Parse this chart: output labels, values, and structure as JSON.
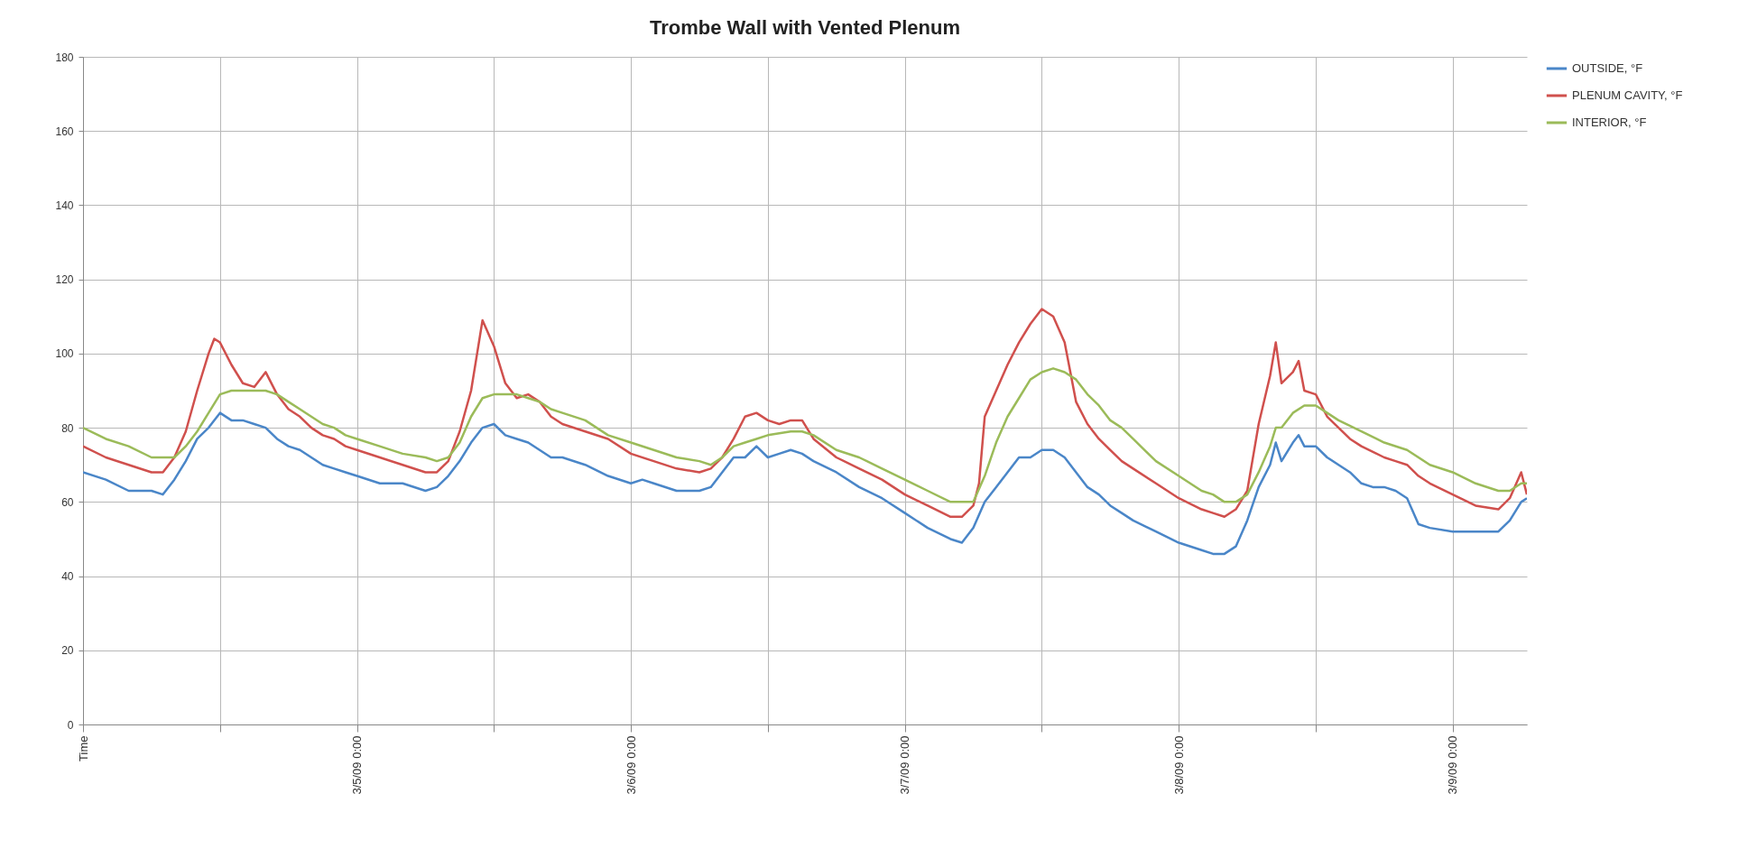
{
  "chart_data": {
    "type": "line",
    "title": "Trombe Wall with Vented Plenum",
    "xlim": [
      "--03-04T00:00",
      "--03-09T06:30"
    ],
    "xticks": [
      {
        "value": "--03-04T00:00",
        "label": "Time"
      },
      {
        "value": "--03-04T12:00",
        "label": null
      },
      {
        "value": "--03-05T00:00",
        "label": "3/5/09 0:00"
      },
      {
        "value": "--03-05T12:00",
        "label": null
      },
      {
        "value": "--03-06T00:00",
        "label": "3/6/09 0:00"
      },
      {
        "value": "--03-06T12:00",
        "label": null
      },
      {
        "value": "--03-07T00:00",
        "label": "3/7/09 0:00"
      },
      {
        "value": "--03-07T12:00",
        "label": null
      },
      {
        "value": "--03-08T00:00",
        "label": "3/8/09 0:00"
      },
      {
        "value": "--03-08T12:00",
        "label": null
      },
      {
        "value": "--03-09T00:00",
        "label": "3/9/09 0:00"
      }
    ],
    "ylim": [
      0,
      180
    ],
    "yticks": [
      0,
      20,
      40,
      60,
      80,
      100,
      120,
      140,
      160,
      180
    ],
    "grid": true,
    "legend": "right",
    "series": [
      {
        "name": "OUTSIDE, °F",
        "color": "#4a86c8",
        "x": [
          "--03-04T00:00",
          "--03-04T02:00",
          "--03-04T04:00",
          "--03-04T06:00",
          "--03-04T07:00",
          "--03-04T08:00",
          "--03-04T09:00",
          "--03-04T10:00",
          "--03-04T11:00",
          "--03-04T12:00",
          "--03-04T13:00",
          "--03-04T14:00",
          "--03-04T15:00",
          "--03-04T16:00",
          "--03-04T17:00",
          "--03-04T18:00",
          "--03-04T19:00",
          "--03-04T20:00",
          "--03-04T21:00",
          "--03-04T22:00",
          "--03-04T23:00",
          "--03-05T00:00",
          "--03-05T02:00",
          "--03-05T04:00",
          "--03-05T06:00",
          "--03-05T07:00",
          "--03-05T08:00",
          "--03-05T09:00",
          "--03-05T10:00",
          "--03-05T11:00",
          "--03-05T12:00",
          "--03-05T13:00",
          "--03-05T14:00",
          "--03-05T15:00",
          "--03-05T16:00",
          "--03-05T17:00",
          "--03-05T18:00",
          "--03-05T20:00",
          "--03-05T22:00",
          "--03-06T00:00",
          "--03-06T01:00",
          "--03-06T02:00",
          "--03-06T04:00",
          "--03-06T06:00",
          "--03-06T07:00",
          "--03-06T08:00",
          "--03-06T09:00",
          "--03-06T10:00",
          "--03-06T11:00",
          "--03-06T12:00",
          "--03-06T13:00",
          "--03-06T14:00",
          "--03-06T15:00",
          "--03-06T16:00",
          "--03-06T18:00",
          "--03-06T20:00",
          "--03-06T22:00",
          "--03-07T00:00",
          "--03-07T02:00",
          "--03-07T04:00",
          "--03-07T05:00",
          "--03-07T06:00",
          "--03-07T07:00",
          "--03-07T08:00",
          "--03-07T09:00",
          "--03-07T10:00",
          "--03-07T11:00",
          "--03-07T12:00",
          "--03-07T13:00",
          "--03-07T14:00",
          "--03-07T15:00",
          "--03-07T16:00",
          "--03-07T17:00",
          "--03-07T18:00",
          "--03-07T19:00",
          "--03-07T20:00",
          "--03-07T22:00",
          "--03-08T00:00",
          "--03-08T02:00",
          "--03-08T03:00",
          "--03-08T04:00",
          "--03-08T05:00",
          "--03-08T06:00",
          "--03-08T07:00",
          "--03-08T08:00",
          "--03-08T08:30",
          "--03-08T09:00",
          "--03-08T10:00",
          "--03-08T10:30",
          "--03-08T11:00",
          "--03-08T12:00",
          "--03-08T13:00",
          "--03-08T14:00",
          "--03-08T15:00",
          "--03-08T16:00",
          "--03-08T17:00",
          "--03-08T18:00",
          "--03-08T19:00",
          "--03-08T20:00",
          "--03-08T21:00",
          "--03-08T22:00",
          "--03-09T00:00",
          "--03-09T02:00",
          "--03-09T04:00",
          "--03-09T05:00",
          "--03-09T06:00",
          "--03-09T06:30"
        ],
        "values": [
          68,
          66,
          63,
          63,
          62,
          66,
          71,
          77,
          80,
          84,
          82,
          82,
          81,
          80,
          77,
          75,
          74,
          72,
          70,
          69,
          68,
          67,
          65,
          65,
          63,
          64,
          67,
          71,
          76,
          80,
          81,
          78,
          77,
          76,
          74,
          72,
          72,
          70,
          67,
          65,
          66,
          65,
          63,
          63,
          64,
          68,
          72,
          72,
          75,
          72,
          73,
          74,
          73,
          71,
          68,
          64,
          61,
          57,
          53,
          50,
          49,
          53,
          60,
          64,
          68,
          72,
          72,
          74,
          74,
          72,
          68,
          64,
          62,
          59,
          57,
          55,
          52,
          49,
          47,
          46,
          46,
          48,
          55,
          64,
          70,
          76,
          71,
          76,
          78,
          75,
          75,
          72,
          70,
          68,
          65,
          64,
          64,
          63,
          61,
          54,
          53,
          52,
          52,
          52,
          55,
          60,
          61
        ]
      },
      {
        "name": "PLENUM CAVITY, °F",
        "color": "#d0504d",
        "x": [
          "--03-04T00:00",
          "--03-04T02:00",
          "--03-04T04:00",
          "--03-04T06:00",
          "--03-04T07:00",
          "--03-04T08:00",
          "--03-04T09:00",
          "--03-04T10:00",
          "--03-04T11:00",
          "--03-04T11:30",
          "--03-04T12:00",
          "--03-04T13:00",
          "--03-04T14:00",
          "--03-04T15:00",
          "--03-04T16:00",
          "--03-04T17:00",
          "--03-04T18:00",
          "--03-04T19:00",
          "--03-04T20:00",
          "--03-04T21:00",
          "--03-04T22:00",
          "--03-04T23:00",
          "--03-05T00:00",
          "--03-05T02:00",
          "--03-05T04:00",
          "--03-05T06:00",
          "--03-05T07:00",
          "--03-05T08:00",
          "--03-05T09:00",
          "--03-05T10:00",
          "--03-05T11:00",
          "--03-05T12:00",
          "--03-05T13:00",
          "--03-05T14:00",
          "--03-05T15:00",
          "--03-05T16:00",
          "--03-05T17:00",
          "--03-05T18:00",
          "--03-05T20:00",
          "--03-05T22:00",
          "--03-06T00:00",
          "--03-06T02:00",
          "--03-06T04:00",
          "--03-06T06:00",
          "--03-06T07:00",
          "--03-06T08:00",
          "--03-06T09:00",
          "--03-06T10:00",
          "--03-06T11:00",
          "--03-06T12:00",
          "--03-06T13:00",
          "--03-06T14:00",
          "--03-06T15:00",
          "--03-06T16:00",
          "--03-06T18:00",
          "--03-06T20:00",
          "--03-06T22:00",
          "--03-07T00:00",
          "--03-07T02:00",
          "--03-07T04:00",
          "--03-07T05:00",
          "--03-07T06:00",
          "--03-07T06:30",
          "--03-07T07:00",
          "--03-07T08:00",
          "--03-07T09:00",
          "--03-07T10:00",
          "--03-07T11:00",
          "--03-07T12:00",
          "--03-07T13:00",
          "--03-07T14:00",
          "--03-07T15:00",
          "--03-07T16:00",
          "--03-07T17:00",
          "--03-07T18:00",
          "--03-07T19:00",
          "--03-07T20:00",
          "--03-07T22:00",
          "--03-08T00:00",
          "--03-08T02:00",
          "--03-08T03:00",
          "--03-08T04:00",
          "--03-08T05:00",
          "--03-08T06:00",
          "--03-08T07:00",
          "--03-08T08:00",
          "--03-08T08:30",
          "--03-08T09:00",
          "--03-08T10:00",
          "--03-08T10:30",
          "--03-08T11:00",
          "--03-08T12:00",
          "--03-08T13:00",
          "--03-08T14:00",
          "--03-08T15:00",
          "--03-08T16:00",
          "--03-08T18:00",
          "--03-08T19:00",
          "--03-08T20:00",
          "--03-08T21:00",
          "--03-08T22:00",
          "--03-09T00:00",
          "--03-09T02:00",
          "--03-09T04:00",
          "--03-09T05:00",
          "--03-09T06:00",
          "--03-09T06:30"
        ],
        "values": [
          75,
          72,
          70,
          68,
          68,
          72,
          79,
          90,
          100,
          104,
          103,
          97,
          92,
          91,
          95,
          89,
          85,
          83,
          80,
          78,
          77,
          75,
          74,
          72,
          70,
          68,
          68,
          71,
          79,
          90,
          109,
          102,
          92,
          88,
          89,
          87,
          83,
          81,
          79,
          77,
          73,
          71,
          69,
          68,
          69,
          72,
          77,
          83,
          84,
          82,
          81,
          82,
          82,
          77,
          72,
          69,
          66,
          62,
          59,
          56,
          56,
          59,
          65,
          83,
          90,
          97,
          103,
          108,
          112,
          110,
          103,
          87,
          81,
          77,
          74,
          71,
          69,
          65,
          61,
          58,
          57,
          56,
          58,
          63,
          81,
          94,
          103,
          92,
          95,
          98,
          90,
          89,
          83,
          80,
          77,
          75,
          72,
          71,
          70,
          67,
          65,
          62,
          59,
          58,
          61,
          68,
          62
        ]
      },
      {
        "name": "INTERIOR, °F",
        "color": "#9bbb59",
        "x": [
          "--03-04T00:00",
          "--03-04T02:00",
          "--03-04T04:00",
          "--03-04T06:00",
          "--03-04T07:00",
          "--03-04T08:00",
          "--03-04T09:00",
          "--03-04T10:00",
          "--03-04T11:00",
          "--03-04T12:00",
          "--03-04T13:00",
          "--03-04T14:00",
          "--03-04T16:00",
          "--03-04T17:00",
          "--03-04T18:00",
          "--03-04T19:00",
          "--03-04T20:00",
          "--03-04T21:00",
          "--03-04T22:00",
          "--03-04T23:00",
          "--03-05T00:00",
          "--03-05T02:00",
          "--03-05T04:00",
          "--03-05T06:00",
          "--03-05T07:00",
          "--03-05T08:00",
          "--03-05T09:00",
          "--03-05T10:00",
          "--03-05T11:00",
          "--03-05T12:00",
          "--03-05T14:00",
          "--03-05T15:00",
          "--03-05T16:00",
          "--03-05T17:00",
          "--03-05T18:00",
          "--03-05T20:00",
          "--03-05T22:00",
          "--03-06T00:00",
          "--03-06T02:00",
          "--03-06T04:00",
          "--03-06T06:00",
          "--03-06T07:00",
          "--03-06T08:00",
          "--03-06T09:00",
          "--03-06T10:00",
          "--03-06T11:00",
          "--03-06T12:00",
          "--03-06T14:00",
          "--03-06T15:00",
          "--03-06T16:00",
          "--03-06T18:00",
          "--03-06T20:00",
          "--03-06T22:00",
          "--03-07T00:00",
          "--03-07T02:00",
          "--03-07T04:00",
          "--03-07T05:00",
          "--03-07T06:00",
          "--03-07T07:00",
          "--03-07T08:00",
          "--03-07T09:00",
          "--03-07T10:00",
          "--03-07T11:00",
          "--03-07T12:00",
          "--03-07T13:00",
          "--03-07T14:00",
          "--03-07T15:00",
          "--03-07T16:00",
          "--03-07T17:00",
          "--03-07T18:00",
          "--03-07T19:00",
          "--03-07T20:00",
          "--03-07T22:00",
          "--03-08T00:00",
          "--03-08T02:00",
          "--03-08T03:00",
          "--03-08T04:00",
          "--03-08T05:00",
          "--03-08T06:00",
          "--03-08T07:00",
          "--03-08T08:00",
          "--03-08T08:30",
          "--03-08T09:00",
          "--03-08T10:00",
          "--03-08T11:00",
          "--03-08T12:00",
          "--03-08T13:00",
          "--03-08T14:00",
          "--03-08T16:00",
          "--03-08T18:00",
          "--03-08T20:00",
          "--03-08T22:00",
          "--03-09T00:00",
          "--03-09T02:00",
          "--03-09T04:00",
          "--03-09T05:00",
          "--03-09T06:00",
          "--03-09T06:30"
        ],
        "values": [
          80,
          77,
          75,
          72,
          72,
          72,
          75,
          79,
          84,
          89,
          90,
          90,
          90,
          89,
          87,
          85,
          83,
          81,
          80,
          78,
          77,
          75,
          73,
          72,
          71,
          72,
          76,
          83,
          88,
          89,
          89,
          88,
          87,
          85,
          84,
          82,
          78,
          76,
          74,
          72,
          71,
          70,
          72,
          75,
          76,
          77,
          78,
          79,
          79,
          78,
          74,
          72,
          69,
          66,
          63,
          60,
          60,
          60,
          67,
          76,
          83,
          88,
          93,
          95,
          96,
          95,
          93,
          89,
          86,
          82,
          80,
          77,
          71,
          67,
          63,
          62,
          60,
          60,
          62,
          68,
          75,
          80,
          80,
          84,
          86,
          86,
          84,
          82,
          79,
          76,
          74,
          70,
          68,
          65,
          63,
          63,
          65,
          65
        ]
      }
    ]
  }
}
